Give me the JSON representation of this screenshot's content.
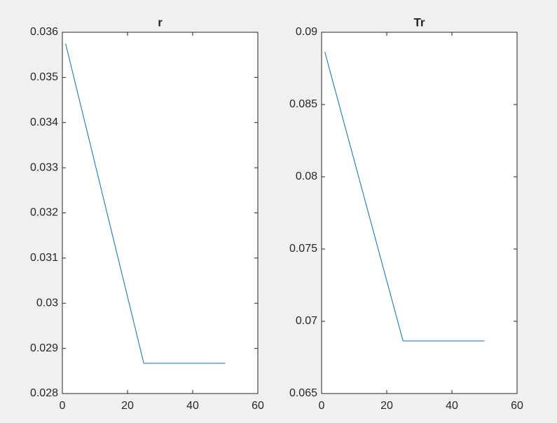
{
  "chart_data": [
    {
      "type": "line",
      "title": "r",
      "x": [
        1,
        25,
        50
      ],
      "values": [
        0.03575,
        0.02867,
        0.02867
      ],
      "color": "#0072bd",
      "xlim": [
        0,
        60
      ],
      "xticks": [
        0,
        20,
        40,
        60
      ],
      "ylim": [
        0.028,
        0.036
      ],
      "yticks": [
        0.028,
        0.029,
        0.03,
        0.031,
        0.032,
        0.033,
        0.034,
        0.035,
        0.036
      ]
    },
    {
      "type": "line",
      "title": "Tr",
      "x": [
        1,
        25,
        50
      ],
      "values": [
        0.08864,
        0.06864,
        0.06864
      ],
      "color": "#0072bd",
      "xlim": [
        0,
        60
      ],
      "xticks": [
        0,
        20,
        40,
        60
      ],
      "ylim": [
        0.065,
        0.09
      ],
      "yticks": [
        0.065,
        0.07,
        0.075,
        0.08,
        0.085,
        0.09
      ]
    }
  ]
}
